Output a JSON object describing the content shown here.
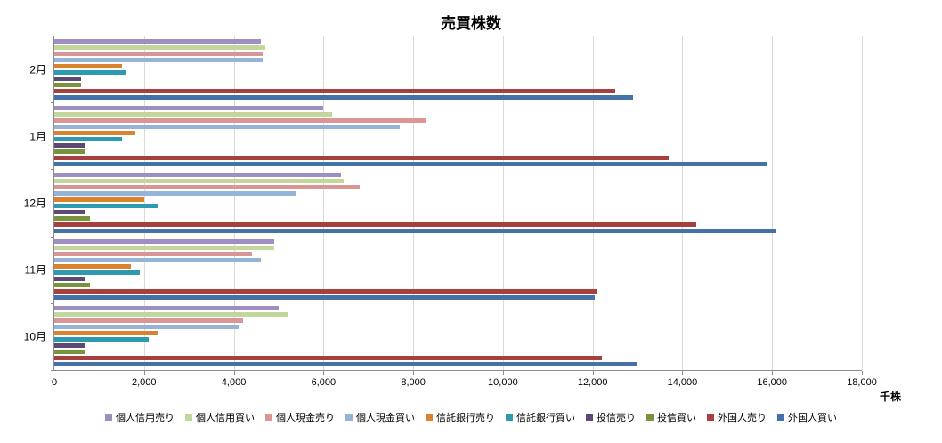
{
  "chart_data": {
    "type": "bar",
    "orientation": "horizontal",
    "title": "売買株数",
    "xlabel": "千株",
    "xlim": [
      0,
      18000
    ],
    "gridline_interval": 2000,
    "grid": true,
    "legend_position": "bottom",
    "x_tick_labels": [
      "0",
      "2,000",
      "4,000",
      "6,000",
      "8,000",
      "10,000",
      "12,000",
      "14,000",
      "16,000",
      "18,000"
    ],
    "categories": [
      "2月",
      "1月",
      "12月",
      "11月",
      "10月"
    ],
    "series": [
      {
        "name": "個人信用売り",
        "color": "#9e8fc0",
        "values": [
          4600,
          6000,
          6400,
          4900,
          5000
        ]
      },
      {
        "name": "個人信用買い",
        "color": "#c3d69b",
        "values": [
          4700,
          6200,
          6450,
          4900,
          5200
        ]
      },
      {
        "name": "個人現金売り",
        "color": "#d99694",
        "values": [
          4650,
          8300,
          6800,
          4400,
          4200
        ]
      },
      {
        "name": "個人現金買い",
        "color": "#95b3d7",
        "values": [
          4650,
          7700,
          5400,
          4600,
          4100
        ]
      },
      {
        "name": "信託銀行売り",
        "color": "#d9832e",
        "values": [
          1500,
          1800,
          2000,
          1700,
          2300
        ]
      },
      {
        "name": "信託銀行買い",
        "color": "#2e9aaf",
        "values": [
          1600,
          1500,
          2300,
          1900,
          2100
        ]
      },
      {
        "name": "投信売り",
        "color": "#5c4a72",
        "values": [
          600,
          700,
          700,
          700,
          700
        ]
      },
      {
        "name": "投信買い",
        "color": "#77933c",
        "values": [
          600,
          700,
          800,
          800,
          700
        ]
      },
      {
        "name": "外国人売り",
        "color": "#a5403e",
        "values": [
          12500,
          13700,
          14300,
          12100,
          12200
        ]
      },
      {
        "name": "外国人買い",
        "color": "#4472a8",
        "values": [
          12900,
          15900,
          16100,
          12050,
          13000
        ]
      }
    ]
  }
}
